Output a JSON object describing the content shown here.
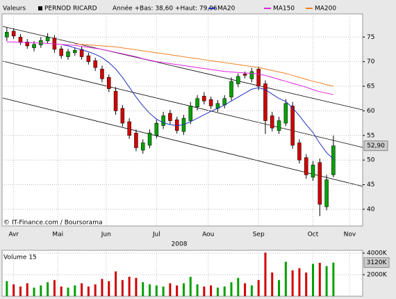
{
  "chart_data": [
    {
      "type": "candlestick",
      "label": "Valeurs",
      "title": "PERNOD RICARD",
      "subtitle": "Année +Bas: 38,60 +Haut: 79,96",
      "source": "© IT-Finance.com / Boursorama",
      "xlabel": "2008",
      "x": [
        0,
        1,
        2,
        3,
        4,
        5,
        6,
        7,
        8,
        9,
        10,
        11,
        12,
        13,
        14,
        15,
        16,
        17,
        18,
        19,
        20,
        21,
        22,
        23,
        24,
        25,
        26,
        27,
        28,
        29,
        30,
        31,
        32,
        33,
        34,
        35,
        36,
        37,
        38,
        39,
        40,
        41,
        42,
        43,
        44,
        45,
        46,
        47,
        48
      ],
      "open": [
        75.0,
        76.2,
        75.0,
        74.0,
        72.8,
        73.4,
        74.2,
        74.8,
        72.6,
        71.0,
        71.8,
        72.5,
        71.2,
        70.2,
        68.5,
        66.8,
        64.0,
        60.5,
        57.8,
        55.5,
        52.0,
        53.0,
        55.0,
        57.0,
        59.5,
        58.2,
        55.8,
        58.0,
        60.8,
        63.0,
        62.3,
        60.5,
        61.2,
        62.8,
        65.5,
        67.5,
        66.5,
        68.5,
        65.5,
        59.0,
        56.0,
        57.5,
        61.0,
        53.5,
        50.5,
        46.5,
        49.5,
        40.5,
        47.0
      ],
      "high": [
        77.0,
        76.8,
        75.6,
        74.6,
        74.2,
        75.0,
        75.8,
        75.4,
        73.2,
        72.6,
        72.9,
        73.1,
        71.8,
        70.8,
        69.2,
        67.4,
        64.8,
        61.2,
        58.5,
        56.2,
        54.2,
        56.2,
        58.2,
        59.8,
        60.2,
        58.8,
        59.2,
        61.8,
        63.2,
        63.8,
        62.9,
        62.2,
        63.2,
        66.8,
        67.6,
        68.0,
        68.7,
        69.0,
        66.2,
        59.8,
        58.8,
        62.4,
        61.8,
        54.2,
        51.2,
        49.8,
        50.3,
        47.0,
        55.0
      ],
      "low": [
        74.2,
        74.6,
        73.4,
        72.6,
        72.1,
        72.8,
        73.6,
        71.8,
        70.6,
        70.4,
        71.2,
        70.4,
        69.4,
        68.1,
        65.8,
        63.8,
        59.2,
        56.8,
        54.3,
        51.8,
        51.3,
        52.4,
        54.4,
        56.3,
        57.3,
        55.4,
        55.1,
        57.3,
        60.1,
        61.3,
        60.4,
        59.8,
        60.5,
        62.1,
        64.8,
        66.6,
        65.8,
        64.2,
        55.3,
        55.8,
        55.3,
        56.9,
        52.3,
        49.3,
        46.2,
        45.8,
        38.6,
        39.8,
        46.5
      ],
      "close": [
        76.0,
        75.2,
        74.0,
        73.2,
        73.5,
        74.3,
        75.0,
        72.5,
        71.2,
        72.0,
        72.3,
        71.0,
        70.0,
        68.8,
        66.5,
        64.5,
        60.0,
        57.5,
        55.0,
        52.5,
        53.5,
        55.5,
        57.5,
        59.0,
        58.0,
        56.0,
        58.5,
        61.0,
        62.5,
        62.0,
        61.0,
        61.5,
        62.5,
        66.0,
        67.0,
        67.2,
        68.0,
        65.0,
        58.0,
        56.5,
        58.0,
        61.5,
        53.0,
        50.0,
        47.0,
        49.0,
        41.0,
        46.0,
        52.9
      ],
      "last_value_label": "52,90",
      "up_color": "#00a000",
      "down_color": "#d00000",
      "series": [
        {
          "name": "MA20",
          "color": "#2030c0",
          "values": [
            null,
            null,
            null,
            null,
            null,
            null,
            null,
            null,
            73.5,
            73.2,
            72.8,
            72.4,
            72.0,
            71.5,
            70.8,
            69.8,
            68.5,
            66.8,
            64.8,
            62.8,
            61.0,
            59.5,
            58.3,
            57.6,
            57.2,
            57.0,
            57.2,
            57.8,
            58.5,
            59.2,
            59.9,
            60.5,
            61.2,
            62.0,
            62.8,
            63.6,
            64.4,
            64.7,
            64.3,
            63.4,
            62.5,
            61.9,
            60.6,
            59.0,
            57.2,
            55.6,
            53.4,
            51.5,
            50.2
          ]
        },
        {
          "name": "MA150",
          "color": "#e020e0",
          "values": [
            74.0,
            74.0,
            73.9,
            73.9,
            73.8,
            73.8,
            73.7,
            73.6,
            73.5,
            73.4,
            73.3,
            73.1,
            72.9,
            72.7,
            72.5,
            72.2,
            71.9,
            71.6,
            71.3,
            71.0,
            70.6,
            70.3,
            70.0,
            69.8,
            69.6,
            69.4,
            69.2,
            69.0,
            68.8,
            68.6,
            68.4,
            68.2,
            68.0,
            67.9,
            67.8,
            67.7,
            67.6,
            67.5,
            67.2,
            66.8,
            66.4,
            66.0,
            65.6,
            65.2,
            64.8,
            64.3,
            63.9,
            63.6,
            63.3
          ]
        },
        {
          "name": "MA200",
          "color": "#f08020",
          "values": [
            null,
            null,
            null,
            null,
            null,
            null,
            null,
            null,
            null,
            null,
            73.6,
            73.5,
            73.4,
            73.3,
            73.2,
            73.1,
            73.0,
            72.8,
            72.6,
            72.4,
            72.2,
            72.0,
            71.8,
            71.6,
            71.4,
            71.2,
            71.0,
            70.8,
            70.6,
            70.4,
            70.2,
            70.0,
            69.8,
            69.6,
            69.4,
            69.2,
            69.0,
            68.8,
            68.5,
            68.2,
            67.9,
            67.6,
            67.2,
            66.8,
            66.4,
            66.0,
            65.7,
            65.3,
            65.0
          ]
        }
      ],
      "xlim": [
        -0.7,
        52.3
      ],
      "xticks": [
        {
          "value": 1,
          "label": "Avr"
        },
        {
          "value": 7.5,
          "label": "Mai"
        },
        {
          "value": 14.6,
          "label": "Jun"
        },
        {
          "value": 22,
          "label": "Jul"
        },
        {
          "value": 29.6,
          "label": "Aou"
        },
        {
          "value": 37,
          "label": "Sep"
        },
        {
          "value": 45,
          "label": "Oct"
        },
        {
          "value": 50.4,
          "label": "Nov"
        }
      ],
      "ylim": [
        36.6,
        79.7
      ],
      "yticks": [
        40,
        45,
        50,
        55,
        60,
        65,
        70,
        75
      ],
      "grid": true
    },
    {
      "type": "bar",
      "title": "Volume 15",
      "x": [
        0,
        1,
        2,
        3,
        4,
        5,
        6,
        7,
        8,
        9,
        10,
        11,
        12,
        13,
        14,
        15,
        16,
        17,
        18,
        19,
        20,
        21,
        22,
        23,
        24,
        25,
        26,
        27,
        28,
        29,
        30,
        31,
        32,
        33,
        34,
        35,
        36,
        37,
        38,
        39,
        40,
        41,
        42,
        43,
        44,
        45,
        46,
        47,
        48
      ],
      "values": [
        1400000,
        1100000,
        900000,
        1200000,
        800000,
        1000000,
        1300000,
        1500000,
        900000,
        800000,
        1000000,
        1200000,
        900000,
        1100000,
        1600000,
        1400000,
        2300000,
        1500000,
        1800000,
        1700000,
        1300000,
        1100000,
        1000000,
        900000,
        1200000,
        1000000,
        1200000,
        1800000,
        1100000,
        900000,
        1000000,
        800000,
        900000,
        1300000,
        1700000,
        1200000,
        1000000,
        1500000,
        4050000,
        2200000,
        1500000,
        3200000,
        2400000,
        2600000,
        2200000,
        3000000,
        3100000,
        2800000,
        3120000
      ],
      "last_value_label": "3120K",
      "xlim": [
        -0.7,
        52.3
      ],
      "ylim": [
        0,
        4260000
      ],
      "yticks": [
        {
          "value": 2000000,
          "label": "2000K"
        },
        {
          "value": 4000000,
          "label": "4000K"
        }
      ],
      "grid": true
    }
  ]
}
